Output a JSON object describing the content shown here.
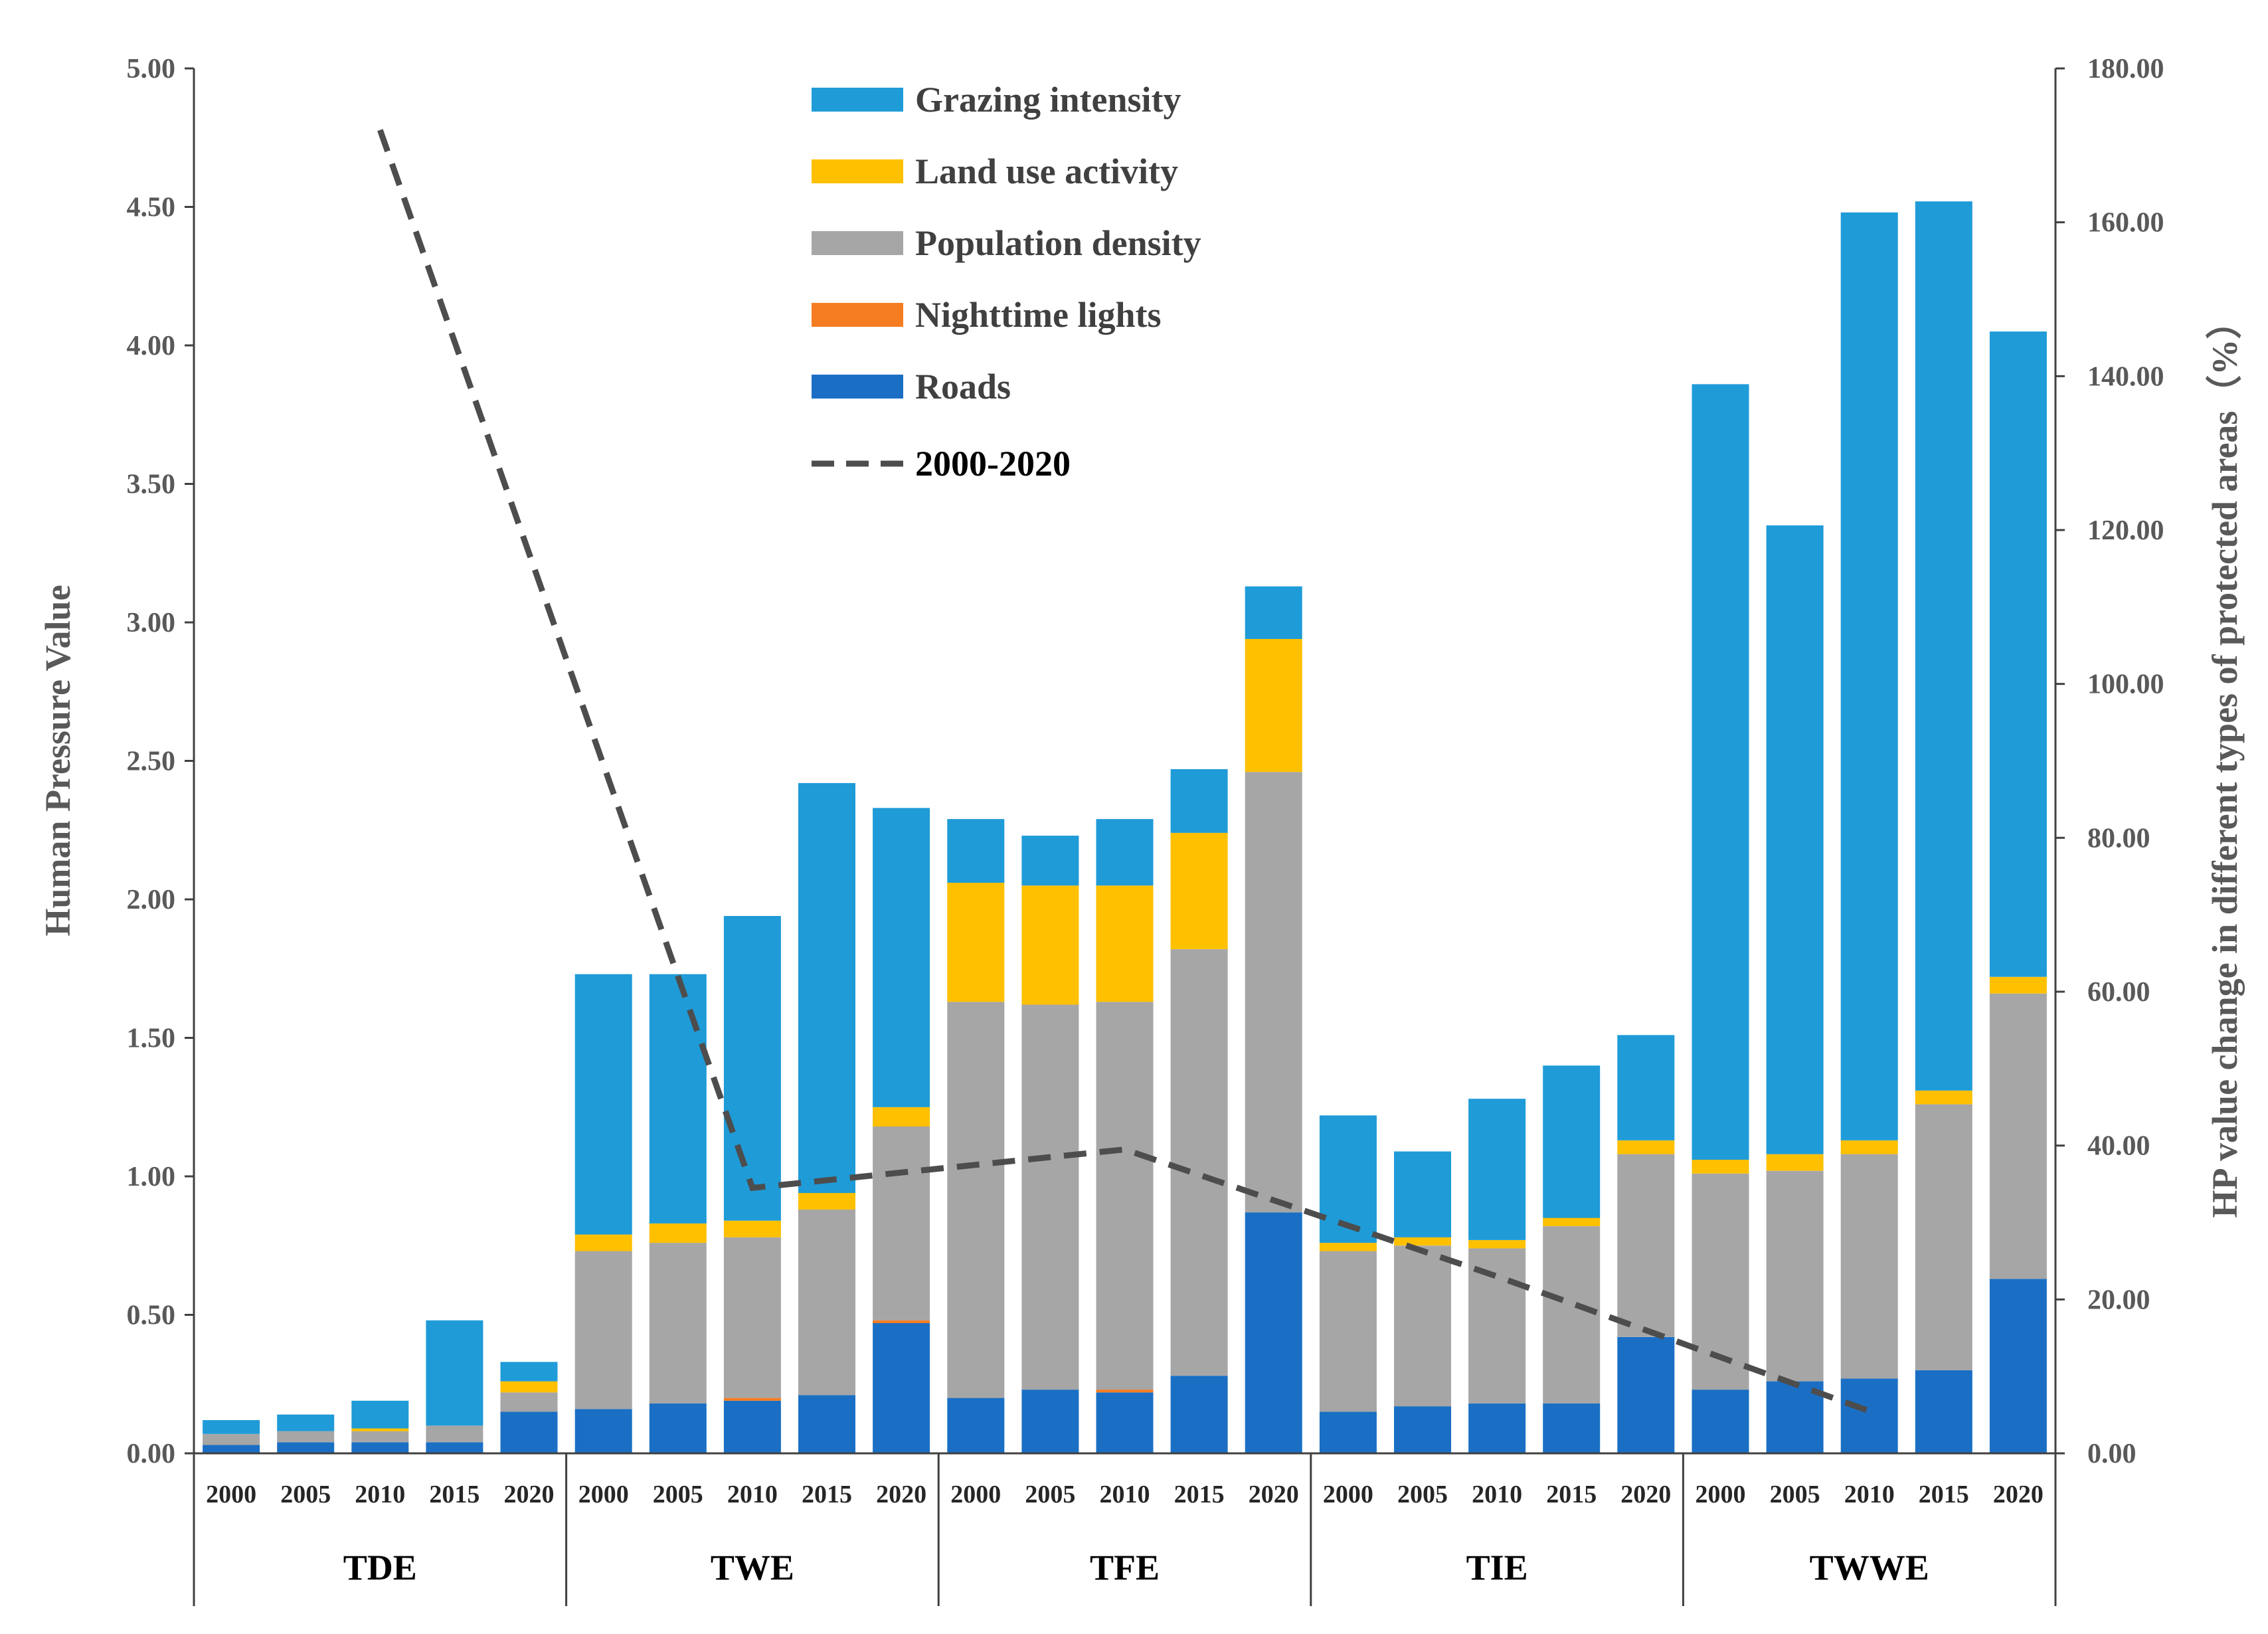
{
  "chart_data": {
    "type": "bar",
    "stacked": true,
    "groups": [
      "TDE",
      "TWE",
      "TFE",
      "TIE",
      "TWWE"
    ],
    "years": [
      "2000",
      "2005",
      "2010",
      "2015",
      "2020"
    ],
    "ylabel": "Human Pressure Value",
    "ylim": [
      0,
      5
    ],
    "yticks": [
      "0.00",
      "0.50",
      "1.00",
      "1.50",
      "2.00",
      "2.50",
      "3.00",
      "3.50",
      "4.00",
      "4.50",
      "5.00"
    ],
    "y2label": "HP value change in different types of protected areas（%）",
    "y2lim": [
      0,
      180
    ],
    "y2ticks": [
      "0.00",
      "20.00",
      "40.00",
      "60.00",
      "80.00",
      "100.00",
      "120.00",
      "140.00",
      "160.00",
      "180.00"
    ],
    "series": [
      {
        "name": "Roads",
        "color": "#1a6fc4",
        "values": [
          0.03,
          0.04,
          0.04,
          0.04,
          0.15,
          0.16,
          0.18,
          0.19,
          0.21,
          0.47,
          0.2,
          0.23,
          0.22,
          0.28,
          0.87,
          0.15,
          0.17,
          0.18,
          0.18,
          0.42,
          0.23,
          0.26,
          0.27,
          0.3,
          0.63
        ]
      },
      {
        "name": "Nighttime lights",
        "color": "#f57c21",
        "values": [
          0.0,
          0.0,
          0.0,
          0.0,
          0.0,
          0.0,
          0.0,
          0.01,
          0.0,
          0.01,
          0.0,
          0.0,
          0.01,
          0.0,
          0.0,
          0.0,
          0.0,
          0.0,
          0.0,
          0.0,
          0.0,
          0.0,
          0.0,
          0.0,
          0.0
        ]
      },
      {
        "name": "Population density",
        "color": "#a6a6a6",
        "values": [
          0.04,
          0.04,
          0.04,
          0.06,
          0.07,
          0.57,
          0.58,
          0.58,
          0.67,
          0.7,
          1.43,
          1.39,
          1.4,
          1.54,
          1.59,
          0.58,
          0.58,
          0.56,
          0.64,
          0.66,
          0.78,
          0.76,
          0.81,
          0.96,
          1.03
        ]
      },
      {
        "name": "Land use activity",
        "color": "#ffc000",
        "values": [
          0.0,
          0.0,
          0.01,
          0.0,
          0.04,
          0.06,
          0.07,
          0.06,
          0.06,
          0.07,
          0.43,
          0.43,
          0.42,
          0.42,
          0.48,
          0.03,
          0.03,
          0.03,
          0.03,
          0.05,
          0.05,
          0.06,
          0.05,
          0.05,
          0.06
        ]
      },
      {
        "name": "Grazing intensity",
        "color": "#1f9bd8",
        "values": [
          0.05,
          0.06,
          0.1,
          0.38,
          0.07,
          0.94,
          0.9,
          1.1,
          1.48,
          1.08,
          0.23,
          0.18,
          0.24,
          0.23,
          0.19,
          0.46,
          0.31,
          0.51,
          0.55,
          0.38,
          2.8,
          2.27,
          3.35,
          3.21,
          2.33
        ]
      }
    ],
    "line": {
      "name": "2000-2020",
      "color": "#4d4d4d",
      "style": "dashed",
      "axis": "secondary",
      "points": [
        {
          "group": "TDE",
          "year": "2010",
          "value": 172.0
        },
        {
          "group": "TWE",
          "year": "2010",
          "value": 34.5
        },
        {
          "group": "TFE",
          "year": "2010",
          "value": 39.5
        },
        {
          "group": "TIE",
          "year": "2010",
          "value": 23.0
        },
        {
          "group": "TWWE",
          "year": "2010",
          "value": 5.5
        }
      ]
    },
    "legend": {
      "position": "top-center",
      "order": [
        "Grazing intensity",
        "Land use activity",
        "Population density",
        "Nighttime lights",
        "Roads",
        "2000-2020"
      ]
    }
  }
}
